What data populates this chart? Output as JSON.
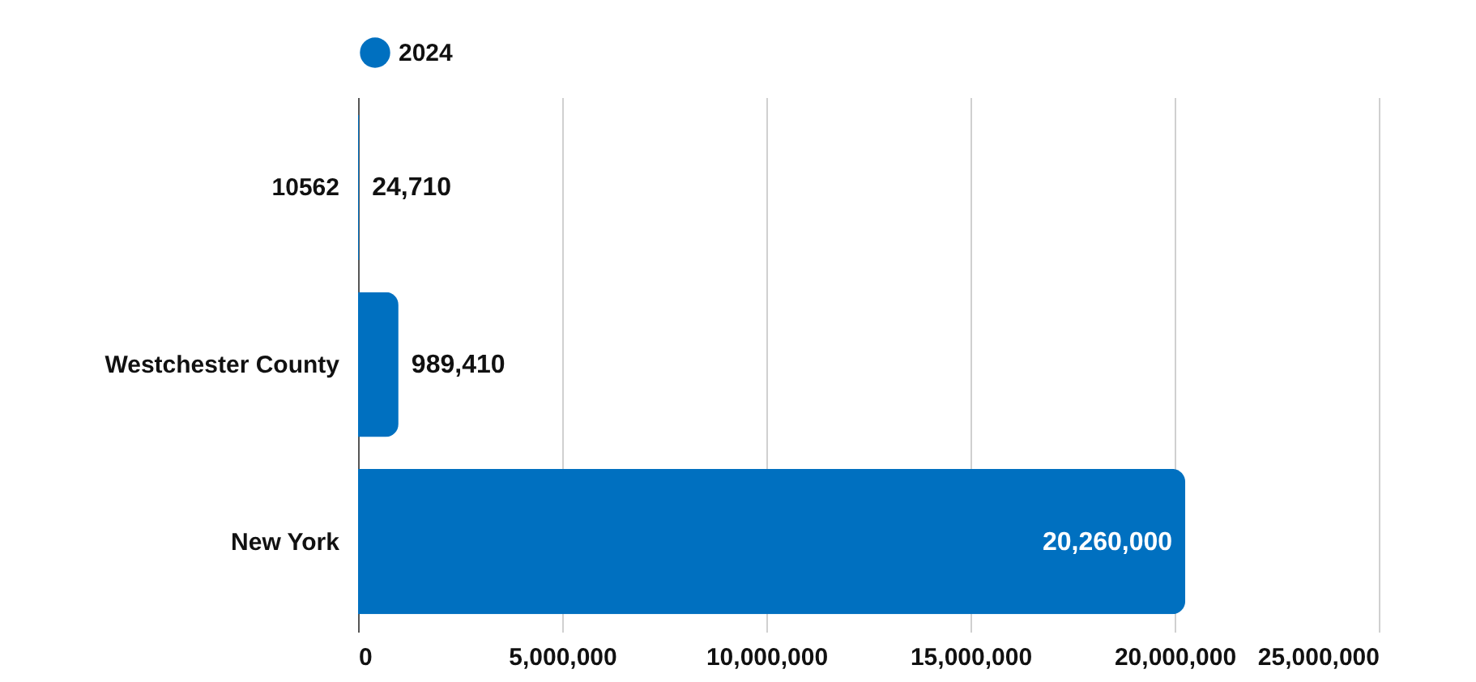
{
  "chart_data": {
    "type": "bar",
    "orientation": "horizontal",
    "categories": [
      "10562",
      "Westchester County",
      "New York"
    ],
    "series": [
      {
        "name": "2024",
        "color": "#0070c0",
        "values": [
          24710,
          989410,
          20260000
        ],
        "value_labels": [
          "24,710",
          "989,410",
          "20,260,000"
        ]
      }
    ],
    "xlim": [
      0,
      25000000
    ],
    "xticks": [
      0,
      {
        "value": 5000000,
        "label": "5,000,000"
      },
      {
        "value": 10000000,
        "label": "10,000,000"
      },
      {
        "value": 15000000,
        "label": "15,000,000"
      },
      {
        "value": 20000000,
        "label": "20,000,000"
      },
      {
        "value": 25000000,
        "label": "25,000,000"
      }
    ],
    "grid": "x",
    "legend": "top"
  }
}
